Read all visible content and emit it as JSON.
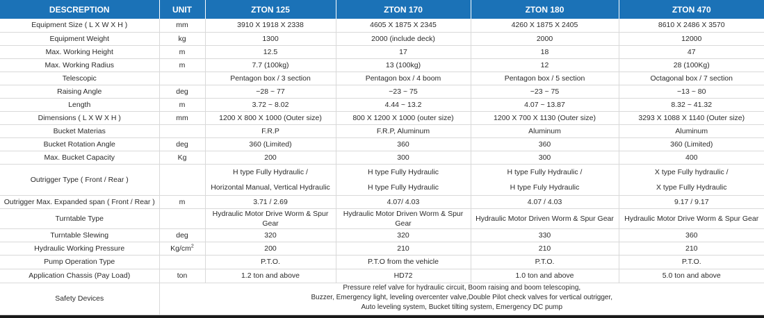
{
  "header": {
    "description": "DESCREPTION",
    "unit": "UNIT",
    "models": [
      "ZTON 125",
      "ZTON 170",
      "ZTON 180",
      "ZTON 470"
    ]
  },
  "rows": [
    {
      "label": "Equipment Size ( L X W X H )",
      "unit": "mm",
      "values": [
        "3910 X 1918 X 2338",
        "4605 X 1875 X 2345",
        "4260 X 1875 X 2405",
        "8610 X 2486 X 3570"
      ]
    },
    {
      "label": "Equipment Weight",
      "unit": "kg",
      "values": [
        "1300",
        "2000 (include deck)",
        "2000",
        "12000"
      ]
    },
    {
      "label": "Max. Working Height",
      "unit": "m",
      "values": [
        "12.5",
        "17",
        "18",
        "47"
      ]
    },
    {
      "label": "Max. Working Radius",
      "unit": "m",
      "values": [
        "7.7 (100kg)",
        "13 (100kg)",
        "12",
        "28 (100Kg)"
      ]
    },
    {
      "label": "Telescopic",
      "unit": "",
      "values": [
        "Pentagon box / 3 section",
        "Pentagon box / 4 boom",
        "Pentagon box / 5 section",
        "Octagonal box / 7 section"
      ]
    },
    {
      "label": "Raising Angle",
      "unit": "deg",
      "values": [
        "−28 ~ 77",
        "−23 ~ 75",
        "−23 ~ 75",
        "−13 ~ 80"
      ]
    },
    {
      "label": "Length",
      "unit": "m",
      "values": [
        "3.72 ~ 8.02",
        "4.44 ~ 13.2",
        "4.07 ~ 13.87",
        "8.32 ~ 41.32"
      ]
    },
    {
      "label": "Dimensions ( L X W X H )",
      "unit": "mm",
      "values": [
        "1200 X 800 X 1000 (Outer size)",
        "800 X 1200 X 1000 (outer size)",
        "1200 X 700 X 1130 (Outer size)",
        "3293 X 1088 X 1140 (Outer size)"
      ]
    },
    {
      "label": "Bucket Materias",
      "unit": "",
      "values": [
        "F.R.P",
        "F.R.P, Aluminum",
        "Aluminum",
        "Aluminum"
      ]
    },
    {
      "label": "Bucket Rotation Angle",
      "unit": "deg",
      "values": [
        "360 (Limited)",
        "360",
        "360",
        "360 (Limited)"
      ]
    },
    {
      "label": "Max. Bucket Capacity",
      "unit": "Kg",
      "values": [
        "200",
        "300",
        "300",
        "400"
      ]
    }
  ],
  "outrigger_type": {
    "label": "Outrigger Type ( Front / Rear )",
    "unit": "",
    "values": [
      [
        "H type Fully Hydraulic /",
        "Horizontal Manual, Vertical Hydraulic"
      ],
      [
        "H type Fully Hydraulic",
        "H type Fully Hydraulic"
      ],
      [
        "H type Fully Hydraulic /",
        "H type Fuly Hydraulic"
      ],
      [
        "X type Fully hydraulic /",
        "X type Fully Hydraulic"
      ]
    ]
  },
  "rows2": [
    {
      "label": "Outrigger Max. Expanded span ( Front / Rear )",
      "unit": "m",
      "values": [
        "3.71 / 2.69",
        "4.07/ 4.03",
        "4.07 / 4.03",
        "9.17 / 9.17"
      ]
    },
    {
      "label": "Turntable Type",
      "unit": "",
      "values": [
        "Hydraulic Motor Drive Worm & Spur Gear",
        "Hydraulic Motor Driven Worm & Spur Gear",
        "Hydraulic Motor Driven Worm & Spur Gear",
        "Hydraulic Motor Drive Worm & Spur Gear"
      ]
    },
    {
      "label": "Turntable Slewing",
      "unit": "deg",
      "values": [
        "320",
        "320",
        "330",
        "360"
      ]
    }
  ],
  "pressure": {
    "label": "Hydraulic Working Pressure",
    "unit": "Kg/cm",
    "unit_sup": "2",
    "values": [
      "200",
      "210",
      "210",
      "210"
    ]
  },
  "rows3": [
    {
      "label": "Pump Operation Type",
      "unit": "",
      "values": [
        "P.T.O.",
        "P.T.O from the vehicle",
        "P.T.O.",
        "P.T.O."
      ]
    },
    {
      "label": "Application Chassis (Pay Load)",
      "unit": "ton",
      "values": [
        "1.2 ton and above",
        "HD72",
        "1.0 ton and above",
        "5.0 ton and above"
      ]
    }
  ],
  "safety": {
    "label": "Safety Devices",
    "lines": [
      "Pressure relef valve for hydraulic circuit, Boom raising and boom telescoping,",
      "Buzzer, Emergency light, leveling overcenter valve,Double Pilot check valves for vertical outrigger,",
      "Auto leveling system, Bucket tilting system, Emergency DC pump"
    ]
  }
}
